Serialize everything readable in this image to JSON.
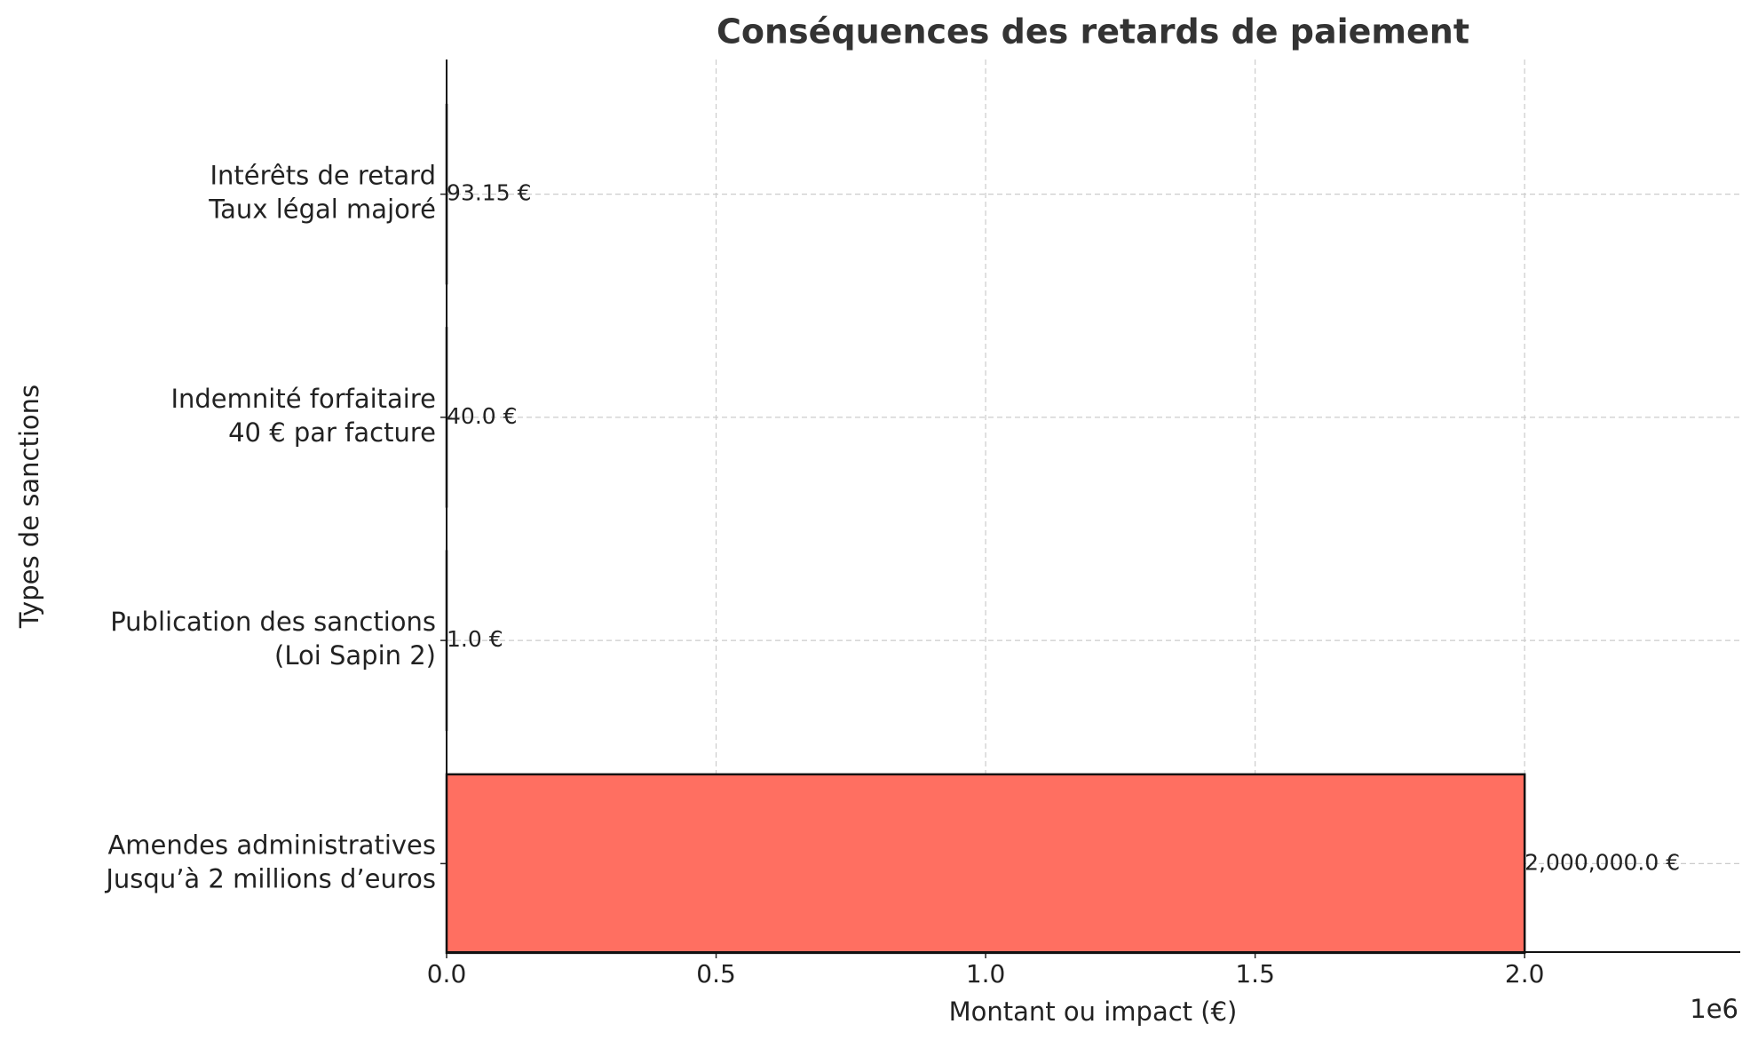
{
  "chart_data": {
    "type": "hbar",
    "title": "Conséquences des retards de paiement",
    "x_label": "Montant ou impact (€)",
    "y_label": "Types de sanctions",
    "x_offset_label": "1e6",
    "categories": [
      "Intérêts de retard\nTaux légal majoré",
      "Indemnité forfaitaire\n40 € par facture",
      "Publication des sanctions\n(Loi Sapin 2)",
      "Amendes administratives\nJusqu’à 2 millions d’euros"
    ],
    "values": [
      93.15,
      40.0,
      1.0,
      2000000.0
    ],
    "value_labels": [
      "93.15 €",
      "40.0 €",
      "1.0 €",
      "2,000,000.0 €"
    ],
    "color": "#ff6f61",
    "xlim": [
      0,
      2400000
    ],
    "xticks": [
      {
        "value": 0,
        "label": "0.0"
      },
      {
        "value": 500000,
        "label": "0.5"
      },
      {
        "value": 1000000,
        "label": "1.0"
      },
      {
        "value": 1500000,
        "label": "1.5"
      },
      {
        "value": 2000000,
        "label": "2.0"
      }
    ],
    "grid": true
  }
}
